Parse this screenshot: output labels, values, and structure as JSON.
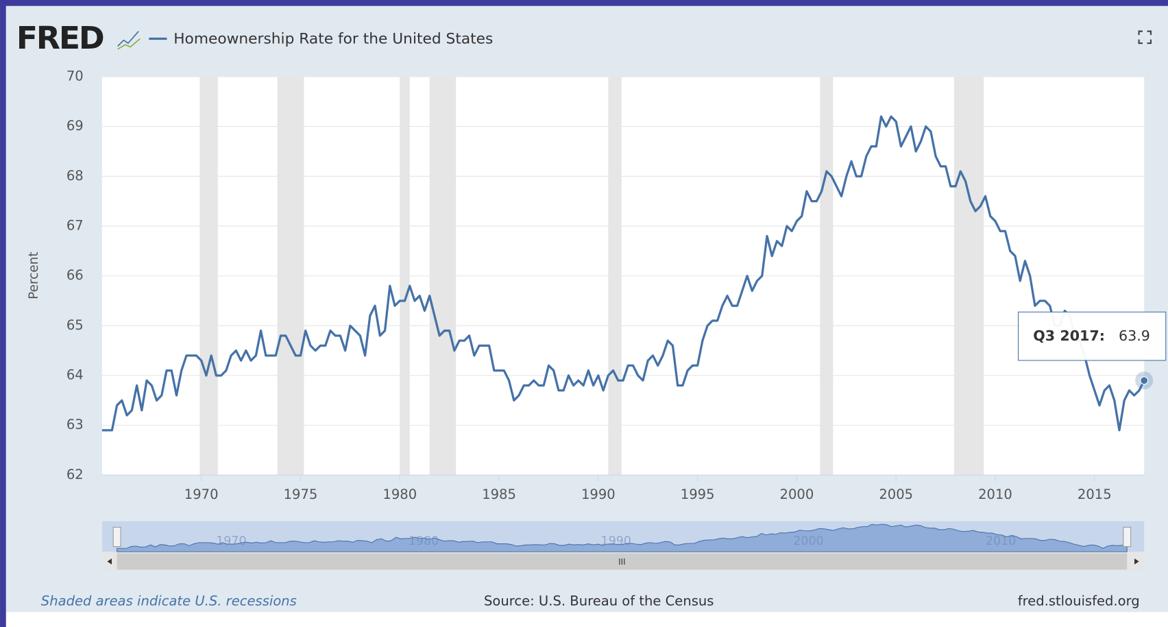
{
  "chart_data": {
    "type": "line",
    "logo": "FRED",
    "title": "Homeownership Rate for the United States",
    "ylabel": "Percent",
    "x": [
      1965,
      1965.25,
      1965.5,
      1965.75,
      1966,
      1966.25,
      1966.5,
      1966.75,
      1967,
      1967.25,
      1967.5,
      1967.75,
      1968,
      1968.25,
      1968.5,
      1968.75,
      1969,
      1969.25,
      1969.5,
      1969.75,
      1970,
      1970.25,
      1970.5,
      1970.75,
      1971,
      1971.25,
      1971.5,
      1971.75,
      1972,
      1972.25,
      1972.5,
      1972.75,
      1973,
      1973.25,
      1973.5,
      1973.75,
      1974,
      1974.25,
      1974.5,
      1974.75,
      1975,
      1975.25,
      1975.5,
      1975.75,
      1976,
      1976.25,
      1976.5,
      1976.75,
      1977,
      1977.25,
      1977.5,
      1977.75,
      1978,
      1978.25,
      1978.5,
      1978.75,
      1979,
      1979.25,
      1979.5,
      1979.75,
      1980,
      1980.25,
      1980.5,
      1980.75,
      1981,
      1981.25,
      1981.5,
      1981.75,
      1982,
      1982.25,
      1982.5,
      1982.75,
      1983,
      1983.25,
      1983.5,
      1983.75,
      1984,
      1984.25,
      1984.5,
      1984.75,
      1985,
      1985.25,
      1985.5,
      1985.75,
      1986,
      1986.25,
      1986.5,
      1986.75,
      1987,
      1987.25,
      1987.5,
      1987.75,
      1988,
      1988.25,
      1988.5,
      1988.75,
      1989,
      1989.25,
      1989.5,
      1989.75,
      1990,
      1990.25,
      1990.5,
      1990.75,
      1991,
      1991.25,
      1991.5,
      1991.75,
      1992,
      1992.25,
      1992.5,
      1992.75,
      1993,
      1993.25,
      1993.5,
      1993.75,
      1994,
      1994.25,
      1994.5,
      1994.75,
      1995,
      1995.25,
      1995.5,
      1995.75,
      1996,
      1996.25,
      1996.5,
      1996.75,
      1997,
      1997.25,
      1997.5,
      1997.75,
      1998,
      1998.25,
      1998.5,
      1998.75,
      1999,
      1999.25,
      1999.5,
      1999.75,
      2000,
      2000.25,
      2000.5,
      2000.75,
      2001,
      2001.25,
      2001.5,
      2001.75,
      2002,
      2002.25,
      2002.5,
      2002.75,
      2003,
      2003.25,
      2003.5,
      2003.75,
      2004,
      2004.25,
      2004.5,
      2004.75,
      2005,
      2005.25,
      2005.5,
      2005.75,
      2006,
      2006.25,
      2006.5,
      2006.75,
      2007,
      2007.25,
      2007.5,
      2007.75,
      2008,
      2008.25,
      2008.5,
      2008.75,
      2009,
      2009.25,
      2009.5,
      2009.75,
      2010,
      2010.25,
      2010.5,
      2010.75,
      2011,
      2011.25,
      2011.5,
      2011.75,
      2012,
      2012.25,
      2012.5,
      2012.75,
      2013,
      2013.25,
      2013.5,
      2013.75,
      2014,
      2014.25,
      2014.5,
      2014.75,
      2015,
      2015.25,
      2015.5,
      2015.75,
      2016,
      2016.25,
      2016.5,
      2016.75,
      2017,
      2017.25,
      2017.5
    ],
    "series": [
      {
        "name": "Homeownership Rate for the United States",
        "color": "#4572a7",
        "values": [
          62.9,
          62.9,
          62.9,
          63.4,
          63.5,
          63.2,
          63.3,
          63.8,
          63.3,
          63.9,
          63.8,
          63.5,
          63.6,
          64.1,
          64.1,
          63.6,
          64.1,
          64.4,
          64.4,
          64.4,
          64.3,
          64.0,
          64.4,
          64.0,
          64.0,
          64.1,
          64.4,
          64.5,
          64.3,
          64.5,
          64.3,
          64.4,
          64.9,
          64.4,
          64.4,
          64.4,
          64.8,
          64.8,
          64.6,
          64.4,
          64.4,
          64.9,
          64.6,
          64.5,
          64.6,
          64.6,
          64.9,
          64.8,
          64.8,
          64.5,
          65.0,
          64.9,
          64.8,
          64.4,
          65.2,
          65.4,
          64.8,
          64.9,
          65.8,
          65.4,
          65.5,
          65.5,
          65.8,
          65.5,
          65.6,
          65.3,
          65.6,
          65.2,
          64.8,
          64.9,
          64.9,
          64.5,
          64.7,
          64.7,
          64.8,
          64.4,
          64.6,
          64.6,
          64.6,
          64.1,
          64.1,
          64.1,
          63.9,
          63.5,
          63.6,
          63.8,
          63.8,
          63.9,
          63.8,
          63.8,
          64.2,
          64.1,
          63.7,
          63.7,
          64.0,
          63.8,
          63.9,
          63.8,
          64.1,
          63.8,
          64.0,
          63.7,
          64.0,
          64.1,
          63.9,
          63.9,
          64.2,
          64.2,
          64.0,
          63.9,
          64.3,
          64.4,
          64.2,
          64.4,
          64.7,
          64.6,
          63.8,
          63.8,
          64.1,
          64.2,
          64.2,
          64.7,
          65.0,
          65.1,
          65.1,
          65.4,
          65.6,
          65.4,
          65.4,
          65.7,
          66.0,
          65.7,
          65.9,
          66.0,
          66.8,
          66.4,
          66.7,
          66.6,
          67.0,
          66.9,
          67.1,
          67.2,
          67.7,
          67.5,
          67.5,
          67.7,
          68.1,
          68.0,
          67.8,
          67.6,
          68.0,
          68.3,
          68.0,
          68.0,
          68.4,
          68.6,
          68.6,
          69.2,
          69.0,
          69.2,
          69.1,
          68.6,
          68.8,
          69.0,
          68.5,
          68.7,
          69.0,
          68.9,
          68.4,
          68.2,
          68.2,
          67.8,
          67.8,
          68.1,
          67.9,
          67.5,
          67.3,
          67.4,
          67.6,
          67.2,
          67.1,
          66.9,
          66.9,
          66.5,
          66.4,
          65.9,
          66.3,
          66.0,
          65.4,
          65.5,
          65.5,
          65.4,
          65.0,
          65.0,
          65.3,
          65.2,
          64.8,
          64.7,
          64.4,
          64.0,
          63.7,
          63.4,
          63.7,
          63.8,
          63.5,
          62.9,
          63.5,
          63.7,
          63.6,
          63.7,
          63.9
        ]
      }
    ],
    "xlim": [
      1965,
      2017.5
    ],
    "xticks": [
      1970,
      1975,
      1980,
      1985,
      1990,
      1995,
      2000,
      2005,
      2010,
      2015
    ],
    "ylim": [
      62,
      70
    ],
    "yticks": [
      62,
      63,
      64,
      65,
      66,
      67,
      68,
      69,
      70
    ],
    "grid": true,
    "recessions": [
      [
        1969.92,
        1970.83
      ],
      [
        1973.83,
        1975.17
      ],
      [
        1980.0,
        1980.5
      ],
      [
        1981.5,
        1982.83
      ],
      [
        1990.5,
        1991.17
      ],
      [
        2001.17,
        2001.83
      ],
      [
        2007.92,
        2009.42
      ]
    ],
    "recession_color": "#e6e6e6",
    "tooltip": {
      "label": "Q3 2017:",
      "value": 63.9
    },
    "navigator_ticks": [
      1970,
      1980,
      1990,
      2000,
      2010
    ],
    "footer": {
      "note": "Shaded areas indicate U.S. recessions",
      "source": "Source: U.S. Bureau of the Census",
      "site": "fred.stlouisfed.org"
    }
  }
}
